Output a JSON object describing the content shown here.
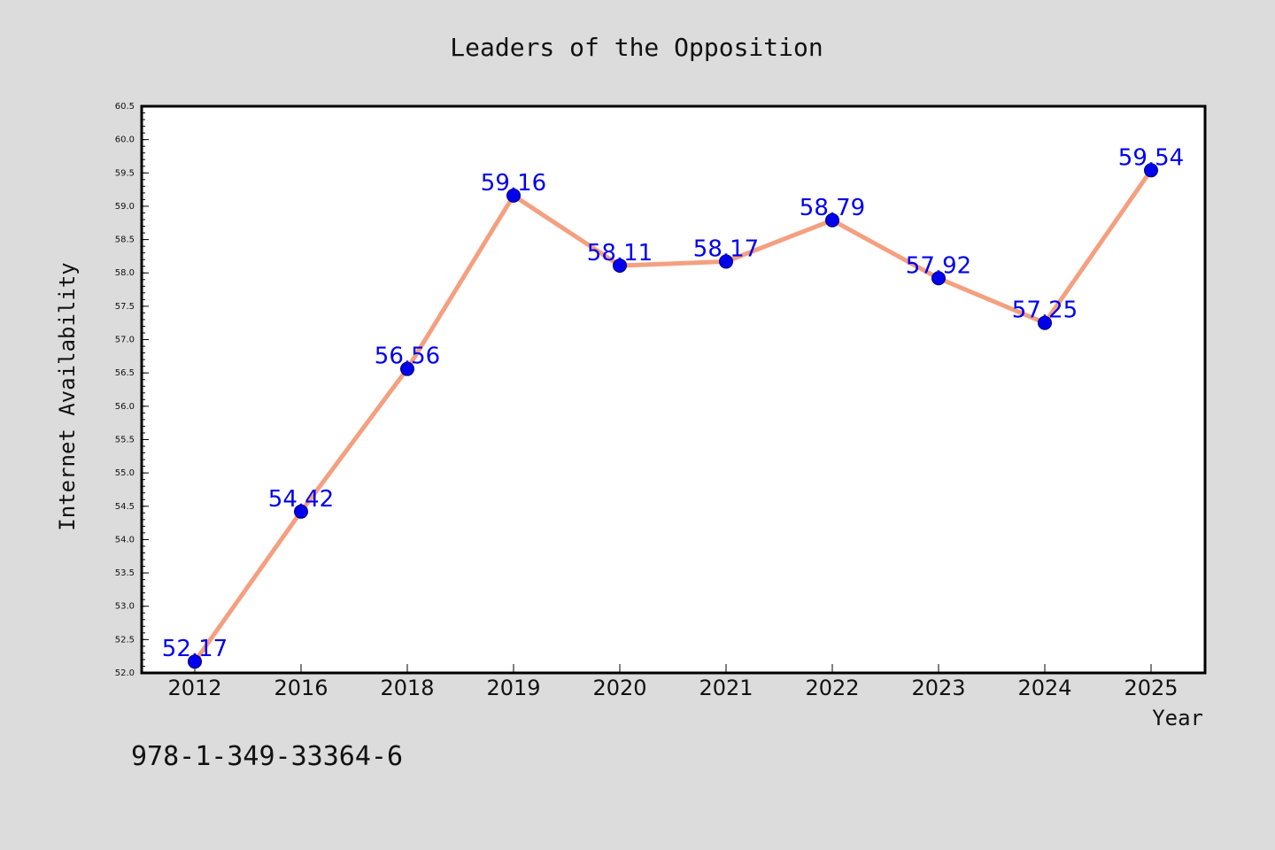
{
  "chart_data": {
    "type": "line",
    "title": "Leaders of the Opposition",
    "xlabel": "Year",
    "ylabel": "Internet Availability",
    "categories": [
      "2012",
      "2016",
      "2018",
      "2019",
      "2020",
      "2021",
      "2022",
      "2023",
      "2024",
      "2025"
    ],
    "series": [
      {
        "values": [
          52.17,
          54.42,
          56.56,
          59.16,
          58.11,
          58.17,
          58.79,
          57.92,
          57.25,
          59.54
        ],
        "data_labels": [
          "52.17",
          "54.42",
          "56.56",
          "59.16",
          "58.11",
          "58.17",
          "58.79",
          "57.92",
          "57.25",
          "59.54"
        ]
      }
    ],
    "ylim": [
      52.0,
      60.5
    ],
    "y_ticks": [
      "52.0",
      "52.5",
      "53.0",
      "53.5",
      "54.0",
      "54.5",
      "55.0",
      "55.5",
      "56.0",
      "56.5",
      "57.0",
      "57.5",
      "58.0",
      "58.5",
      "59.0",
      "59.5",
      "60.0",
      "60.5"
    ],
    "grid": false,
    "legend": "none",
    "colors": {
      "background": "#dcdcdc",
      "plot_background": "#ffffff",
      "line": "#f4a080",
      "marker": "#0000ee",
      "data_label": "#0000ee",
      "text": "#111111"
    }
  },
  "annotation": "978-1-349-33364-6"
}
